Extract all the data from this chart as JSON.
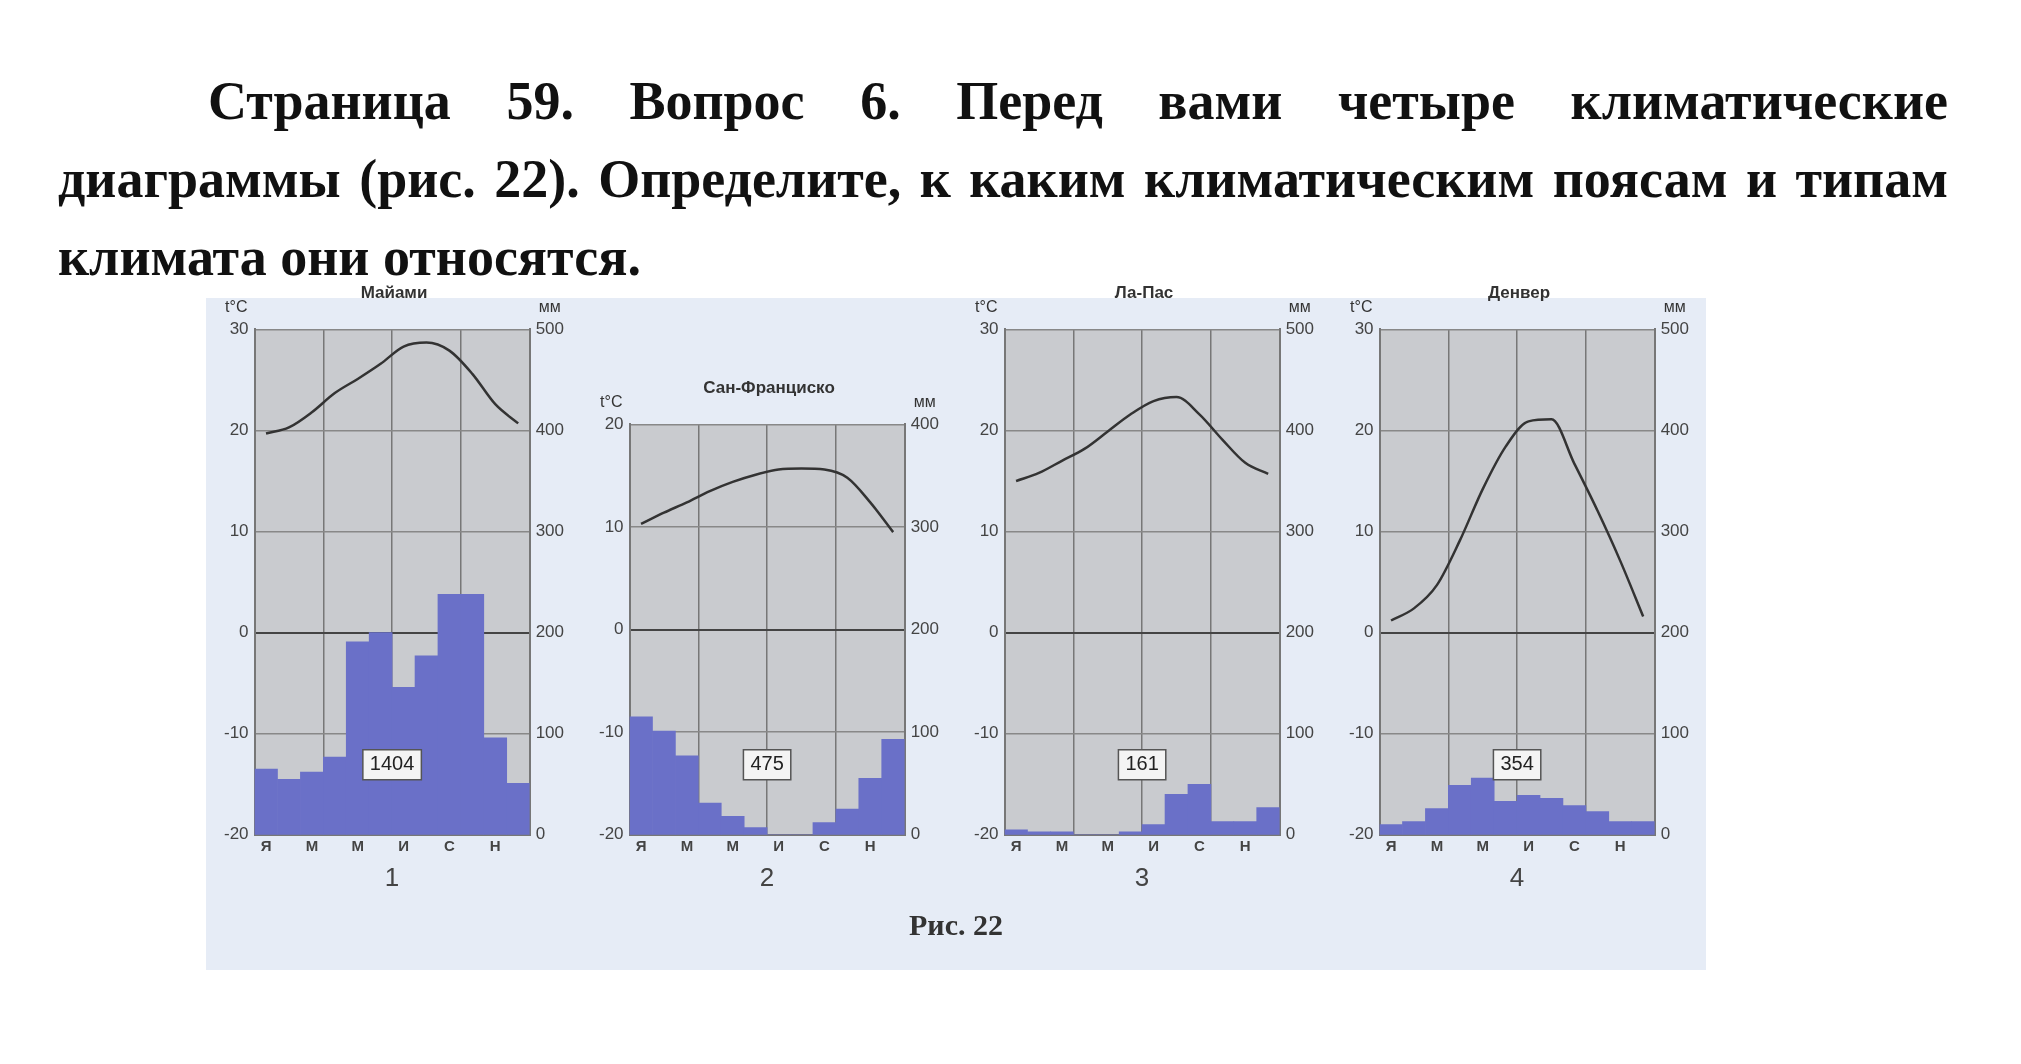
{
  "chart_data": [
    {
      "type": "other",
      "title": "Страница 59. Вопрос 6. Перед вами четыре климатические диаграммы (рис. 22). Определите, к каким климатическим поясам и типам климата они относятся."
    },
    {
      "type": "bar",
      "title": "Майами",
      "xlabel": "1",
      "ylabel": "t°C",
      "y2label": "мм",
      "categories": [
        "Я",
        null,
        "М",
        null,
        "М",
        null,
        "И",
        null,
        "С",
        null,
        "Н",
        null
      ],
      "grid": true,
      "marker": "none",
      "ylim": [
        -20,
        30
      ],
      "yticks": [
        -20,
        -10,
        0,
        10,
        20,
        30
      ],
      "y2lim": [
        0,
        500
      ],
      "y2ticks": [
        0,
        100,
        200,
        300,
        400,
        500
      ],
      "annotations": [
        "1404"
      ],
      "series": [
        {
          "type": "bar",
          "axis": "y2",
          "color": "#6a70c8",
          "values": [
            65,
            55,
            62,
            77,
            191,
            200,
            146,
            177,
            238,
            238,
            96,
            51
          ]
        },
        {
          "type": "line",
          "axis": "y",
          "color": "#333333",
          "values": [
            19.7,
            20.3,
            21.8,
            23.7,
            25.1,
            26.6,
            28.3,
            28.7,
            27.9,
            25.6,
            22.6,
            20.7
          ]
        }
      ]
    },
    {
      "type": "bar",
      "title": "Сан-Франциско",
      "xlabel": "2",
      "ylabel": "t°C",
      "y2label": "мм",
      "categories": [
        "Я",
        null,
        "М",
        null,
        "М",
        null,
        "И",
        null,
        "С",
        null,
        "Н",
        null
      ],
      "grid": true,
      "marker": "none",
      "ylim": [
        -20,
        20
      ],
      "yticks": [
        -20,
        -10,
        0,
        10,
        20
      ],
      "y2lim": [
        0,
        400
      ],
      "y2ticks": [
        0,
        100,
        200,
        300,
        400
      ],
      "annotations": [
        "475"
      ],
      "series": [
        {
          "type": "bar",
          "axis": "y2",
          "color": "#6a70c8",
          "values": [
            115,
            101,
            77,
            31,
            18,
            7,
            0,
            0,
            12,
            25,
            55,
            93
          ]
        },
        {
          "type": "line",
          "axis": "y",
          "color": "#333333",
          "values": [
            10.3,
            11.4,
            12.4,
            13.5,
            14.4,
            15.1,
            15.6,
            15.7,
            15.6,
            14.8,
            12.4,
            9.5
          ]
        }
      ]
    },
    {
      "type": "bar",
      "title": "Ла-Пас",
      "xlabel": "3",
      "ylabel": "t°C",
      "y2label": "мм",
      "categories": [
        "Я",
        null,
        "М",
        null,
        "М",
        null,
        "И",
        null,
        "С",
        null,
        "Н",
        null
      ],
      "grid": true,
      "marker": "none",
      "ylim": [
        -20,
        30
      ],
      "yticks": [
        -20,
        -10,
        0,
        10,
        20,
        30
      ],
      "y2lim": [
        0,
        500
      ],
      "y2ticks": [
        0,
        100,
        200,
        300,
        400,
        500
      ],
      "annotations": [
        "161"
      ],
      "series": [
        {
          "type": "bar",
          "axis": "y2",
          "color": "#6a70c8",
          "values": [
            5,
            3,
            3,
            0,
            0,
            3,
            10,
            40,
            50,
            13,
            13,
            27
          ]
        },
        {
          "type": "line",
          "axis": "y",
          "color": "#333333",
          "values": [
            15.0,
            15.8,
            17.0,
            18.2,
            19.9,
            21.6,
            22.9,
            23.3,
            21.6,
            19.1,
            16.8,
            15.7
          ]
        }
      ]
    },
    {
      "type": "bar",
      "title": "Денвер",
      "xlabel": "4",
      "ylabel": "t°C",
      "y2label": "мм",
      "categories": [
        "Я",
        null,
        "М",
        null,
        "М",
        null,
        "И",
        null,
        "С",
        null,
        "Н",
        null
      ],
      "grid": true,
      "marker": "none",
      "ylim": [
        -20,
        30
      ],
      "yticks": [
        -20,
        -10,
        0,
        10,
        20,
        30
      ],
      "y2lim": [
        0,
        500
      ],
      "y2ticks": [
        0,
        100,
        200,
        300,
        400,
        500
      ],
      "annotations": [
        "354"
      ],
      "series": [
        {
          "type": "bar",
          "axis": "y2",
          "color": "#6a70c8",
          "values": [
            10,
            13,
            26,
            49,
            56,
            33,
            39,
            36,
            29,
            23,
            13,
            13
          ]
        },
        {
          "type": "line",
          "axis": "y",
          "color": "#333333",
          "values": [
            1.2,
            2.4,
            4.7,
            9.1,
            14.2,
            18.4,
            20.9,
            21.1,
            16.7,
            12.1,
            7.1,
            1.6
          ]
        }
      ]
    },
    {
      "type": "other",
      "annotations": [
        "Рис. 22"
      ]
    }
  ]
}
